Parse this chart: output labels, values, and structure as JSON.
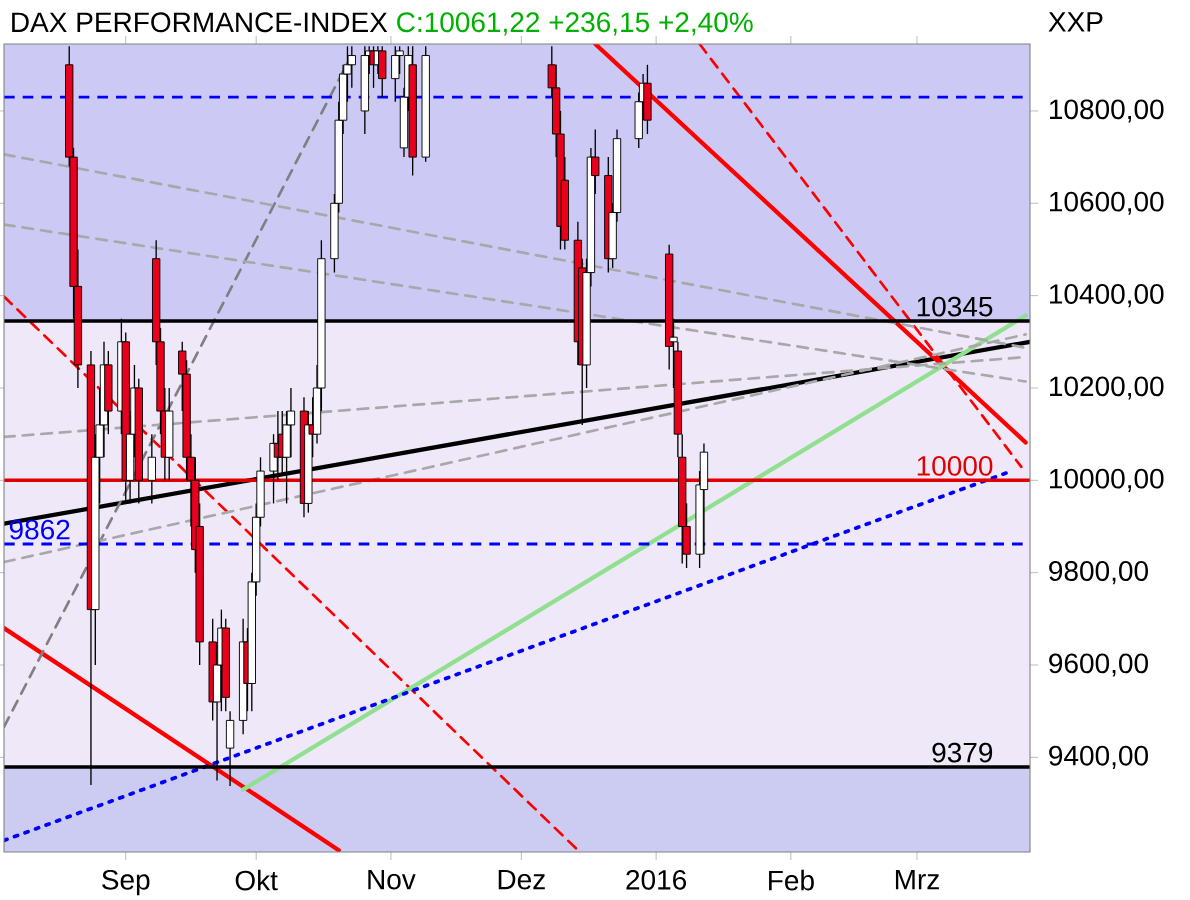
{
  "chart_data": {
    "type": "candlestick",
    "title": "DAX PERFORMANCE-INDEX",
    "subtitle": "C:10061,22 +236,15 +2,40%",
    "ylabel": "XXP",
    "colors": [
      "#e8001c",
      "#e8001c",
      "#e8001c",
      "#e8001c",
      "#ffffff",
      "#ffffff",
      "#ffffff",
      "#e8001c",
      "#ffffff",
      "#e8001c",
      "#ffffff",
      "#ffffff",
      "#e8001c",
      "#ffffff",
      "#e8001c",
      "#e8001c",
      "#e8001c",
      "#ffffff",
      "#e8001c",
      "#e8001c",
      "#e8001c",
      "#e8001c",
      "#e8001c",
      "#e8001c",
      "#ffffff",
      "#ffffff",
      "#e8001c",
      "#ffffff",
      "#ffffff",
      "#e8001c",
      "#ffffff",
      "#ffffff",
      "#ffffff",
      "#ffffff",
      "#e8001c",
      "#e8001c",
      "#ffffff",
      "#ffffff",
      "#e8001c",
      "#ffffff",
      "#e8001c",
      "#ffffff",
      "#ffffff",
      "#ffffff",
      "#ffffff",
      "#ffffff",
      "#ffffff",
      "#ffffff",
      "#ffffff",
      "#ffffff",
      "#e8001c",
      "#ffffff",
      "#e8001c",
      "#ffffff",
      "#ffffff",
      "#ffffff",
      "#ffffff",
      "#e8001c",
      "#ffffff",
      "#e8001c",
      "#e8001c",
      "#e8001c",
      "#e8001c",
      "#e8001c",
      "#e8001c",
      "#ffffff",
      "#ffffff",
      "#e8001c",
      "#e8001c",
      "#ffffff",
      "#ffffff",
      "#ffffff",
      "#ffffff",
      "#e8001c",
      "#e8001c",
      "#ffffff",
      "#e8001c",
      "#e8001c",
      "#e8001c",
      "#ffffff",
      "#ffffff"
    ],
    "x": [
      "2015-08-19",
      "2015-08-20",
      "2015-08-21",
      "2015-08-24",
      "2015-08-25",
      "2015-08-26",
      "2015-08-27",
      "2015-08-28",
      "2015-08-31",
      "2015-09-01",
      "2015-09-02",
      "2015-09-03",
      "2015-09-04",
      "2015-09-07",
      "2015-09-08",
      "2015-09-09",
      "2015-09-10",
      "2015-09-11",
      "2015-09-14",
      "2015-09-15",
      "2015-09-16",
      "2015-09-17",
      "2015-09-18",
      "2015-09-21",
      "2015-09-22",
      "2015-09-23",
      "2015-09-24",
      "2015-09-25",
      "2015-09-28",
      "2015-09-29",
      "2015-09-30",
      "2015-10-01",
      "2015-10-02",
      "2015-10-05",
      "2015-10-06",
      "2015-10-07",
      "2015-10-08",
      "2015-10-09",
      "2015-10-12",
      "2015-10-13",
      "2015-10-14",
      "2015-10-15",
      "2015-10-16",
      "2015-10-19",
      "2015-10-20",
      "2015-10-21",
      "2015-10-22",
      "2015-10-23",
      "2015-10-26",
      "2015-10-27",
      "2015-10-28",
      "2015-10-29",
      "2015-10-30",
      "2015-11-02",
      "2015-11-03",
      "2015-11-04",
      "2015-11-05",
      "2015-11-06",
      "2015-11-09",
      "2015-12-08",
      "2015-12-09",
      "2015-12-10",
      "2015-12-11",
      "2015-12-14",
      "2015-12-15",
      "2015-12-16",
      "2015-12-17",
      "2015-12-18",
      "2015-12-21",
      "2015-12-22",
      "2015-12-23",
      "2015-12-28",
      "2015-12-29",
      "2015-12-30",
      "2016-01-04",
      "2016-01-05",
      "2016-01-06",
      "2016-01-07",
      "2016-01-08",
      "2016-01-11",
      "2016-01-12"
    ],
    "ohlc": [
      [
        10900,
        10940,
        10680,
        10700
      ],
      [
        10700,
        10720,
        10350,
        10420
      ],
      [
        10420,
        10500,
        10200,
        10250
      ],
      [
        10250,
        10280,
        9340,
        9720
      ],
      [
        9720,
        10100,
        9600,
        10050
      ],
      [
        10050,
        10200,
        9950,
        10120
      ],
      [
        10120,
        10300,
        10050,
        10250
      ],
      [
        10250,
        10280,
        10100,
        10150
      ],
      [
        10150,
        10350,
        10100,
        10300
      ],
      [
        10300,
        10320,
        9950,
        10000
      ],
      [
        10000,
        10150,
        9950,
        10100
      ],
      [
        10100,
        10250,
        10050,
        10200
      ],
      [
        10200,
        10220,
        9950,
        10000
      ],
      [
        10000,
        10100,
        9950,
        10050
      ],
      [
        10480,
        10520,
        10250,
        10300
      ],
      [
        10300,
        10330,
        10100,
        10150
      ],
      [
        10150,
        10200,
        10000,
        10050
      ],
      [
        10050,
        10200,
        10000,
        10150
      ],
      [
        10280,
        10300,
        10150,
        10230
      ],
      [
        10230,
        10260,
        10000,
        10050
      ],
      [
        10050,
        10100,
        9900,
        10000
      ],
      [
        10000,
        10050,
        9800,
        9850
      ],
      [
        9900,
        9950,
        9600,
        9650
      ],
      [
        9650,
        9700,
        9480,
        9520
      ],
      [
        9520,
        9650,
        9350,
        9600
      ],
      [
        9600,
        9720,
        9500,
        9680
      ],
      [
        9680,
        9700,
        9500,
        9530
      ],
      [
        9420,
        9500,
        9338,
        9480
      ],
      [
        9480,
        9700,
        9450,
        9650
      ],
      [
        9650,
        9680,
        9500,
        9560
      ],
      [
        9560,
        9800,
        9500,
        9780
      ],
      [
        9780,
        9950,
        9750,
        9920
      ],
      [
        9920,
        10050,
        9900,
        10020
      ],
      [
        10020,
        10100,
        9950,
        10080
      ],
      [
        10080,
        10150,
        10000,
        10050
      ],
      [
        10100,
        10150,
        10010,
        10050
      ],
      [
        10050,
        10150,
        9950,
        10120
      ],
      [
        10120,
        10200,
        10050,
        10150
      ],
      [
        10150,
        10180,
        9920,
        9950
      ],
      [
        9950,
        10150,
        9930,
        10120
      ],
      [
        10120,
        10180,
        10050,
        10100
      ],
      [
        10100,
        10250,
        10080,
        10200
      ],
      [
        10200,
        10520,
        10150,
        10480
      ],
      [
        10480,
        10620,
        10450,
        10600
      ],
      [
        10600,
        10820,
        10580,
        10780
      ],
      [
        10780,
        10900,
        10750,
        10880
      ],
      [
        10880,
        10940,
        10820,
        10900
      ],
      [
        10900,
        10940,
        10850,
        10920
      ],
      [
        10800,
        10940,
        10750,
        10920
      ],
      [
        10920,
        10940,
        10880,
        10930
      ],
      [
        10930,
        10940,
        10850,
        10900
      ],
      [
        10900,
        10940,
        10880,
        10930
      ],
      [
        10930,
        10940,
        10830,
        10870
      ],
      [
        10870,
        10940,
        10820,
        10920
      ],
      [
        10920,
        10940,
        10880,
        10930
      ],
      [
        10720,
        10850,
        10700,
        10830
      ],
      [
        10830,
        10940,
        10800,
        10920
      ],
      [
        10900,
        10940,
        10660,
        10700
      ],
      [
        10700,
        10940,
        10690,
        10920
      ],
      [
        10900,
        10940,
        10830,
        10850
      ],
      [
        10850,
        10900,
        10700,
        10750
      ],
      [
        10750,
        10800,
        10500,
        10550
      ],
      [
        10650,
        10700,
        10500,
        10520
      ],
      [
        10520,
        10560,
        10250,
        10300
      ],
      [
        10460,
        10480,
        10120,
        10250
      ],
      [
        10250,
        10480,
        10200,
        10450
      ],
      [
        10450,
        10720,
        10420,
        10700
      ],
      [
        10700,
        10760,
        10620,
        10660
      ],
      [
        10660,
        10700,
        10450,
        10480
      ],
      [
        10480,
        10600,
        10460,
        10580
      ],
      [
        10580,
        10760,
        10560,
        10740
      ],
      [
        10740,
        10840,
        10720,
        10820
      ],
      [
        10820,
        10880,
        10780,
        10860
      ],
      [
        10860,
        10900,
        10750,
        10780
      ],
      [
        10490,
        10510,
        10240,
        10290
      ],
      [
        10300,
        10350,
        10200,
        10310
      ],
      [
        10280,
        10300,
        10050,
        10100
      ],
      [
        10050,
        10100,
        9820,
        9900
      ],
      [
        9900,
        9950,
        9810,
        9840
      ],
      [
        9840,
        10020,
        9810,
        9990
      ],
      [
        9980,
        10080,
        9840,
        10061
      ]
    ],
    "series": [
      {
        "type": "line",
        "x": [
          "2015-08-04",
          "2016-03-27"
        ],
        "values": [
          9906,
          10300
        ],
        "color": "#000000",
        "line_style": "solid"
      },
      {
        "type": "line",
        "x": [
          "2015-12-18",
          "2016-03-26"
        ],
        "values": [
          10945,
          10082
        ],
        "color": "#ff0000",
        "line_style": "solid"
      },
      {
        "type": "line",
        "x": [
          "2015-08-04",
          "2015-10-20"
        ],
        "values": [
          9680,
          9199
        ],
        "color": "#ff0000",
        "line_style": "solid"
      },
      {
        "type": "line",
        "x": [
          "2016-01-11",
          "2016-03-25"
        ],
        "values": [
          10945,
          10029
        ],
        "color": "#ff0000",
        "line_style": "dashed"
      },
      {
        "type": "line",
        "x": [
          "2015-08-04",
          "2015-12-14"
        ],
        "values": [
          10398,
          9199
        ],
        "color": "#ff0000",
        "line_style": "dashed"
      },
      {
        "type": "line",
        "x": [
          "2015-09-28",
          "2016-03-26"
        ],
        "values": [
          9330,
          10357
        ],
        "color": "#90e090",
        "line_style": "solid"
      },
      {
        "type": "line",
        "x": [
          "2015-08-04",
          "2016-03-23"
        ],
        "values": [
          9220,
          10021
        ],
        "color": "#0000ff",
        "line_style": "dotted"
      },
      {
        "type": "line",
        "x": [
          "2015-08-04",
          "2015-10-22"
        ],
        "values": [
          9466,
          10904
        ],
        "color": "#808080",
        "line_style": "dashed"
      },
      {
        "type": "line",
        "x": [
          "2015-08-04",
          "2016-03-26"
        ],
        "values": [
          10706,
          10287
        ],
        "color": "#a8a8a8",
        "line_style": "dashed"
      },
      {
        "type": "line",
        "x": [
          "2015-08-04",
          "2016-03-26"
        ],
        "values": [
          10554,
          10214
        ],
        "color": "#a8a8a8",
        "line_style": "dashed"
      },
      {
        "type": "line",
        "x": [
          "2015-08-04",
          "2016-03-26"
        ],
        "values": [
          10094,
          10267
        ],
        "color": "#a8a8a8",
        "line_style": "dashed"
      },
      {
        "type": "line",
        "x": [
          "2015-08-04",
          "2016-03-26"
        ],
        "values": [
          9823,
          10316
        ],
        "color": "#a8a8a8",
        "line_style": "dashed"
      }
    ],
    "xlim": [
      "2015-08-04",
      "2016-03-27"
    ],
    "ylim": [
      9195,
      10945
    ],
    "xticks": [
      {
        "value": "2015-09-01",
        "label": "Sep"
      },
      {
        "value": "2015-10-01",
        "label": "Okt"
      },
      {
        "value": "2015-11-01",
        "label": "Nov"
      },
      {
        "value": "2015-12-01",
        "label": "Dez"
      },
      {
        "value": "2016-01-01",
        "label": "2016"
      },
      {
        "value": "2016-02-01",
        "label": "Feb"
      },
      {
        "value": "2016-03-01",
        "label": "Mrz"
      }
    ],
    "yticks": [
      {
        "value": 9400,
        "label": "9400,00"
      },
      {
        "value": 9600,
        "label": "9600,00"
      },
      {
        "value": 9800,
        "label": "9800,00"
      },
      {
        "value": 10000,
        "label": "10000,00"
      },
      {
        "value": 10200,
        "label": "10200,00"
      },
      {
        "value": 10400,
        "label": "10400,00"
      },
      {
        "value": 10600,
        "label": "10600,00"
      },
      {
        "value": 10800,
        "label": "10800,00"
      }
    ],
    "bands": [
      {
        "axis": "y",
        "from": 10345,
        "to": 10945,
        "color": "#cccaf4"
      },
      {
        "axis": "y",
        "from": 9379,
        "to": 10345,
        "color": "#eee8f8"
      },
      {
        "axis": "y",
        "from": 9195,
        "to": 9379,
        "color": "#ccccf2"
      }
    ],
    "ref_lines": [
      {
        "axis": "y",
        "value": 10345,
        "label": "10345",
        "color": "#000000",
        "line_style": "solid"
      },
      {
        "axis": "y",
        "value": 10000,
        "label": "10000",
        "color": "#e00000",
        "line_style": "solid"
      },
      {
        "axis": "y",
        "value": 9862,
        "label": "9862",
        "color": "#0000ff",
        "line_style": "dashed"
      },
      {
        "axis": "y",
        "value": 9379,
        "label": "9379",
        "color": "#000000",
        "line_style": "solid"
      },
      {
        "axis": "y",
        "value": 10830,
        "color": "#0000ff",
        "line_style": "dashed"
      }
    ]
  }
}
